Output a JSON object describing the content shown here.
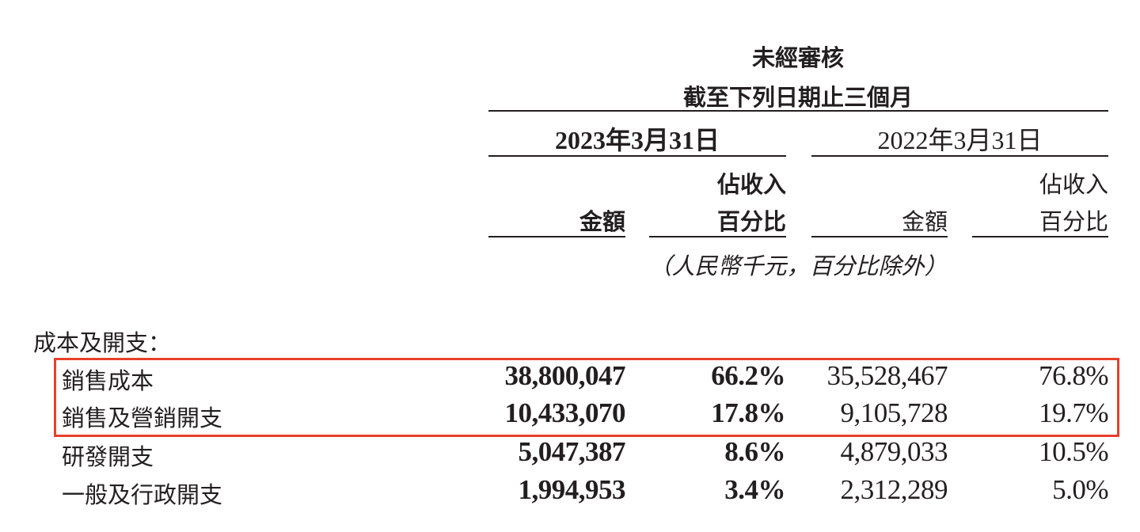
{
  "header": {
    "audit": "未經審核",
    "period": "截至下列日期止三個月"
  },
  "columns": {
    "date_2023": "2023年3月31日",
    "date_2022": "2022年3月31日",
    "pct_line1": "佔收入",
    "pct_line2": "百分比",
    "amount": "金額"
  },
  "unit_note": "（人民幣千元，百分比除外）",
  "section_title": "成本及開支：",
  "highlight_color": "#e8402a",
  "rows": [
    {
      "label": "銷售成本",
      "amt_2023": "38,800,047",
      "pct_2023": "66.2%",
      "amt_2022": "35,528,467",
      "pct_2022": "76.8%"
    },
    {
      "label": "銷售及營銷開支",
      "amt_2023": "10,433,070",
      "pct_2023": "17.8%",
      "amt_2022": "9,105,728",
      "pct_2022": "19.7%"
    },
    {
      "label": "研發開支",
      "amt_2023": "5,047,387",
      "pct_2023": "8.6%",
      "amt_2022": "4,879,033",
      "pct_2022": "10.5%"
    },
    {
      "label": "一般及行政開支",
      "amt_2023": "1,994,953",
      "pct_2023": "3.4%",
      "amt_2022": "2,312,289",
      "pct_2022": "5.0%"
    }
  ]
}
